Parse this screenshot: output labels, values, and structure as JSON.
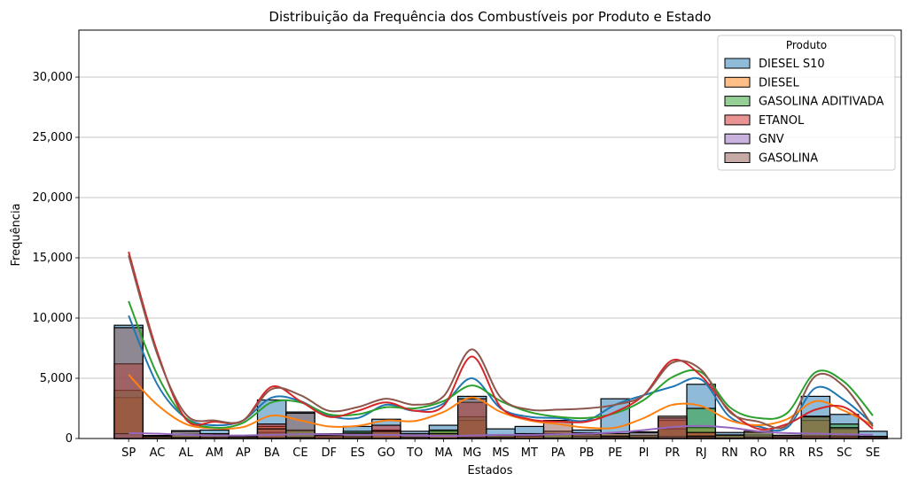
{
  "chart_data": {
    "type": "bar",
    "title": "Distribuição da Frequência dos Combustíveis por Produto e Estado",
    "xlabel": "Estados",
    "ylabel": "Frequência",
    "ylim": [
      0,
      33900
    ],
    "yticks": [
      0,
      5000,
      10000,
      15000,
      20000,
      25000,
      30000
    ],
    "ytick_labels": [
      "0",
      "5,000",
      "10,000",
      "15,000",
      "20,000",
      "25,000",
      "30,000"
    ],
    "grid": "horizontal",
    "legend": {
      "title": "Produto",
      "placement": "top-right"
    },
    "categories": [
      "SP",
      "AC",
      "AL",
      "AM",
      "AP",
      "BA",
      "CE",
      "DF",
      "ES",
      "GO",
      "TO",
      "MA",
      "MG",
      "MS",
      "MT",
      "PA",
      "PB",
      "PE",
      "PI",
      "PR",
      "RJ",
      "RN",
      "RO",
      "RR",
      "RS",
      "SC",
      "SE"
    ],
    "series": [
      {
        "name": "DIESEL S10",
        "color": "#1f77b4",
        "values": [
          9400,
          250,
          650,
          700,
          150,
          3200,
          2200,
          350,
          1000,
          1600,
          600,
          1100,
          3500,
          800,
          1000,
          600,
          700,
          3300,
          550,
          1700,
          4500,
          500,
          300,
          200,
          3500,
          2000,
          600
        ]
      },
      {
        "name": "DIESEL",
        "color": "#ff7f0e",
        "values": [
          3400,
          150,
          350,
          400,
          100,
          1000,
          700,
          150,
          400,
          700,
          250,
          600,
          1500,
          250,
          400,
          600,
          350,
          400,
          250,
          1500,
          900,
          250,
          150,
          100,
          1500,
          800,
          150
        ]
      },
      {
        "name": "GASOLINA ADITIVADA",
        "color": "#2ca02c",
        "values": [
          4000,
          150,
          300,
          250,
          50,
          500,
          650,
          400,
          600,
          650,
          250,
          700,
          1800,
          250,
          300,
          400,
          200,
          200,
          250,
          800,
          2500,
          300,
          500,
          100,
          1850,
          1200,
          100
        ]
      },
      {
        "name": "ETANOL",
        "color": "#d62728",
        "values": [
          6200,
          50,
          100,
          100,
          30,
          1200,
          100,
          350,
          150,
          1100,
          100,
          200,
          3000,
          100,
          200,
          50,
          50,
          100,
          100,
          1700,
          500,
          50,
          100,
          30,
          200,
          200,
          50
        ]
      },
      {
        "name": "GNV",
        "color": "#9467bd",
        "values": [
          400,
          0,
          50,
          0,
          0,
          50,
          50,
          0,
          20,
          10,
          0,
          20,
          100,
          20,
          10,
          0,
          20,
          50,
          10,
          150,
          100,
          20,
          0,
          0,
          50,
          60,
          10
        ]
      },
      {
        "name": "GASOLINA",
        "color": "#8c564b",
        "values": [
          9200,
          200,
          600,
          300,
          170,
          800,
          2100,
          250,
          450,
          600,
          400,
          400,
          3300,
          300,
          400,
          1500,
          480,
          200,
          500,
          1850,
          200,
          280,
          600,
          270,
          1800,
          900,
          180
        ]
      }
    ],
    "kde_curves": [
      {
        "name": "DIESEL S10",
        "color": "#1f77b4",
        "values": [
          10200,
          4500,
          1700,
          1100,
          1500,
          3400,
          3100,
          1900,
          1700,
          2800,
          2300,
          2900,
          5000,
          2500,
          1800,
          1700,
          1500,
          2800,
          3600,
          4300,
          4900,
          1800,
          1000,
          900,
          4200,
          3200,
          1200
        ]
      },
      {
        "name": "DIESEL",
        "color": "#ff7f0e",
        "values": [
          5300,
          2800,
          1200,
          850,
          950,
          1900,
          1500,
          1000,
          1050,
          1500,
          1450,
          2200,
          3400,
          2200,
          1500,
          1200,
          900,
          900,
          1700,
          2800,
          2700,
          1500,
          1100,
          1600,
          3100,
          2300,
          1100
        ]
      },
      {
        "name": "GASOLINA ADITIVADA",
        "color": "#2ca02c",
        "values": [
          11400,
          5300,
          1700,
          900,
          1300,
          3000,
          3000,
          2000,
          2000,
          2600,
          2500,
          3100,
          4400,
          3100,
          2200,
          1800,
          1700,
          2100,
          3200,
          5100,
          5500,
          2600,
          1700,
          2100,
          5500,
          4700,
          1900
        ]
      },
      {
        "name": "ETANOL",
        "color": "#d62728",
        "values": [
          15500,
          7200,
          1600,
          1400,
          1500,
          4300,
          3100,
          1800,
          2300,
          3000,
          2300,
          2700,
          6800,
          2600,
          1600,
          1400,
          1400,
          2200,
          3600,
          6500,
          5200,
          2300,
          800,
          1200,
          2400,
          2600,
          800
        ]
      },
      {
        "name": "GNV",
        "color": "#9467bd",
        "values": [
          450,
          400,
          300,
          250,
          250,
          300,
          350,
          350,
          300,
          300,
          250,
          200,
          250,
          300,
          300,
          350,
          400,
          500,
          700,
          950,
          1050,
          900,
          600,
          450,
          400,
          350,
          300
        ]
      },
      {
        "name": "GASOLINA",
        "color": "#8c564b",
        "values": [
          15200,
          7000,
          2000,
          1500,
          1500,
          4100,
          3600,
          2300,
          2600,
          3300,
          2800,
          3500,
          7400,
          3400,
          2400,
          2400,
          2500,
          2800,
          3600,
          6300,
          5700,
          2200,
          1400,
          1100,
          5200,
          4300,
          1000
        ]
      }
    ]
  }
}
